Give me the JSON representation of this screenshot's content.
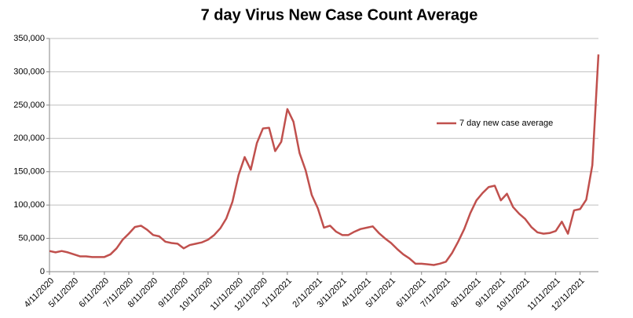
{
  "chart_data": {
    "type": "line",
    "title": "7 day Virus New Case Count Average",
    "categories": [
      "4/11/2020",
      null,
      null,
      null,
      "5/11/2020",
      null,
      null,
      null,
      null,
      "6/11/2020",
      null,
      null,
      null,
      "7/11/2020",
      null,
      null,
      null,
      "8/11/2020",
      null,
      null,
      null,
      null,
      "9/11/2020",
      null,
      null,
      null,
      "10/11/2020",
      null,
      null,
      null,
      null,
      "11/11/2020",
      null,
      null,
      null,
      "12/11/2020",
      null,
      null,
      null,
      "1/11/2021",
      null,
      null,
      null,
      null,
      "2/11/2021",
      null,
      null,
      null,
      "3/11/2021",
      null,
      null,
      null,
      "4/11/2021",
      null,
      null,
      null,
      "5/11/2021",
      null,
      null,
      null,
      null,
      "6/11/2021",
      null,
      null,
      null,
      "7/11/2021",
      null,
      null,
      null,
      null,
      "8/11/2021",
      null,
      null,
      null,
      "9/11/2021",
      null,
      null,
      null,
      "10/11/2021",
      null,
      null,
      null,
      null,
      "11/11/2021",
      null,
      null,
      null,
      "12/11/2021",
      null,
      null,
      null
    ],
    "series": [
      {
        "name": "7 day new case average",
        "color": "#c0504d",
        "values": [
          31000,
          29000,
          31000,
          29000,
          26000,
          23000,
          23000,
          22000,
          22000,
          22000,
          26000,
          35000,
          48000,
          57000,
          67000,
          69000,
          63000,
          55000,
          53000,
          45000,
          43000,
          42000,
          35000,
          40000,
          42000,
          44000,
          48000,
          55000,
          65000,
          80000,
          105000,
          145000,
          172000,
          153000,
          193000,
          215000,
          216000,
          181000,
          195000,
          244000,
          225000,
          178000,
          152000,
          115000,
          95000,
          66000,
          69000,
          60000,
          55000,
          55000,
          60000,
          64000,
          66000,
          68000,
          58000,
          50000,
          43000,
          34000,
          26000,
          20000,
          12000,
          12000,
          11000,
          10000,
          12000,
          15000,
          28000,
          45000,
          64000,
          88000,
          107000,
          118000,
          127000,
          129000,
          107000,
          117000,
          97000,
          87000,
          79000,
          67000,
          59000,
          57000,
          58000,
          61000,
          75000,
          57000,
          92000,
          94000,
          108000,
          160000,
          326000
        ]
      }
    ],
    "ylim": [
      0,
      350000
    ],
    "yticks": [
      0,
      {
        "value": 50000,
        "label": "50,000"
      },
      {
        "value": 100000,
        "label": "100,000"
      },
      {
        "value": 150000,
        "label": "150,000"
      },
      {
        "value": 200000,
        "label": "200,000"
      },
      {
        "value": 250000,
        "label": "250,000"
      },
      {
        "value": 300000,
        "label": "300,000"
      },
      {
        "value": 350000,
        "label": "350,000"
      }
    ],
    "grid": true
  }
}
